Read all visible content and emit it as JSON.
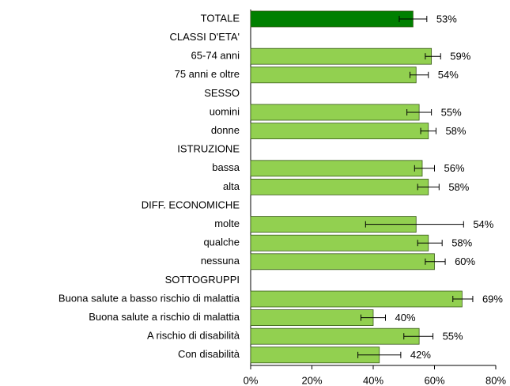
{
  "chart_data": {
    "type": "bar",
    "orientation": "horizontal",
    "categories": [
      "TOTALE",
      "CLASSI D'ETA'",
      "65-74 anni",
      "75 anni e oltre",
      "SESSO",
      "uomini",
      "donne",
      "ISTRUZIONE",
      "bassa",
      "alta",
      "DIFF. ECONOMICHE",
      "molte",
      "qualche",
      "nessuna",
      "SOTTOGRUPPI",
      "Buona salute a basso rischio di malattia",
      "Buona salute a rischio di malattia",
      "A rischio di disabilità",
      "Con disabilità"
    ],
    "values": [
      53,
      null,
      59,
      54,
      null,
      55,
      58,
      null,
      56,
      58,
      null,
      54,
      58,
      60,
      null,
      69,
      40,
      55,
      42
    ],
    "value_labels": [
      "53%",
      null,
      "59%",
      "54%",
      null,
      "55%",
      "58%",
      null,
      "56%",
      "58%",
      null,
      "54%",
      "58%",
      "60%",
      null,
      "69%",
      "40%",
      "55%",
      "42%"
    ],
    "err_low": [
      48.5,
      null,
      57,
      52,
      null,
      51,
      55.5,
      null,
      53.5,
      54.5,
      null,
      37.5,
      54.5,
      57,
      null,
      66,
      36,
      50,
      35
    ],
    "err_high": [
      57.5,
      null,
      62,
      58,
      null,
      59,
      60.5,
      null,
      60,
      61.5,
      null,
      69.5,
      62.5,
      63.5,
      null,
      72.5,
      44,
      59.5,
      49
    ],
    "colors": [
      "#008000",
      null,
      "#92d050",
      "#92d050",
      null,
      "#92d050",
      "#92d050",
      null,
      "#92d050",
      "#92d050",
      null,
      "#92d050",
      "#92d050",
      "#92d050",
      null,
      "#92d050",
      "#92d050",
      "#92d050",
      "#92d050"
    ],
    "xlim": [
      0,
      80
    ],
    "xticks": [
      {
        "value": 0,
        "label": "0%"
      },
      {
        "value": 20,
        "label": "20%"
      },
      {
        "value": 40,
        "label": "40%"
      },
      {
        "value": 60,
        "label": "60%"
      },
      {
        "value": 80,
        "label": "80%"
      }
    ]
  }
}
